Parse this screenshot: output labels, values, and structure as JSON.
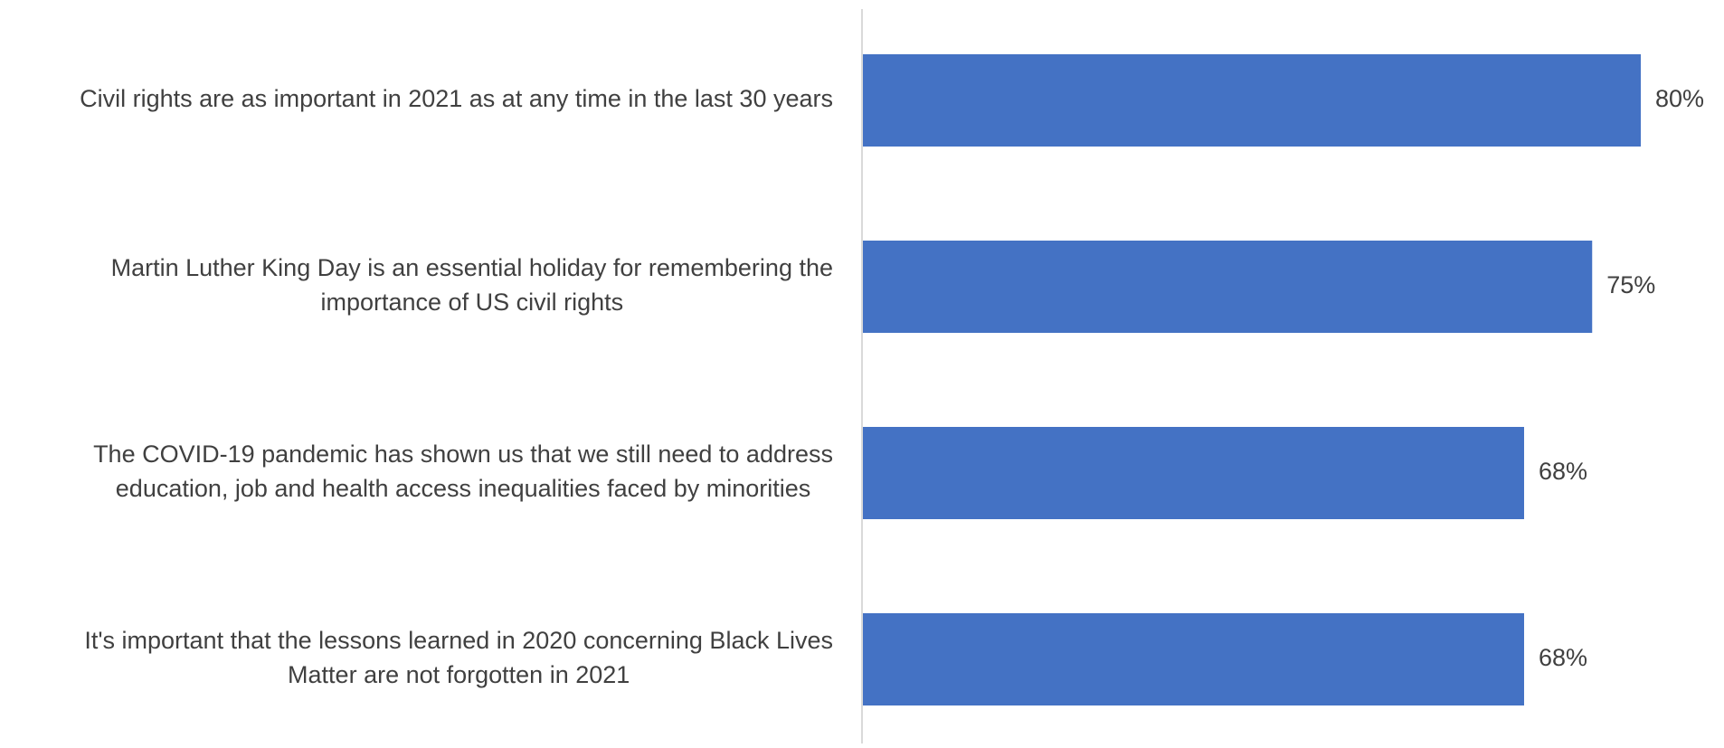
{
  "chart_data": {
    "type": "bar",
    "orientation": "horizontal",
    "categories": [
      "Civil rights are as important in 2021 as at any time in the last 30 years",
      "Martin Luther King Day is an essential holiday for remembering the importance of US civil rights",
      "The COVID-19 pandemic has shown us that we still need to address education, job and health access inequalities faced by minorities",
      "It's important that the lessons learned in 2020 concerning Black Lives Matter are not forgotten in 2021"
    ],
    "category_lines": [
      [
        "Civil rights are as important in 2021 as at any time in the last 30 years"
      ],
      [
        "Martin Luther King Day is an essential holiday for remembering the",
        "importance of US civil rights"
      ],
      [
        "The COVID-19 pandemic has shown us that we still need to address",
        "education, job and health access inequalities faced by minorities"
      ],
      [
        "It's important that the lessons learned in 2020 concerning Black Lives",
        "Matter are not forgotten in 2021"
      ]
    ],
    "values": [
      80,
      75,
      68,
      68
    ],
    "data_labels": [
      "80%",
      "75%",
      "68%",
      "68%"
    ],
    "title": "",
    "xlabel": "",
    "ylabel": "",
    "xlim": [
      0,
      80
    ],
    "grid": false,
    "legend": "none",
    "colors": {
      "bar": "#4472C4",
      "axis": "#D9D9D9",
      "text": "#404040"
    }
  }
}
